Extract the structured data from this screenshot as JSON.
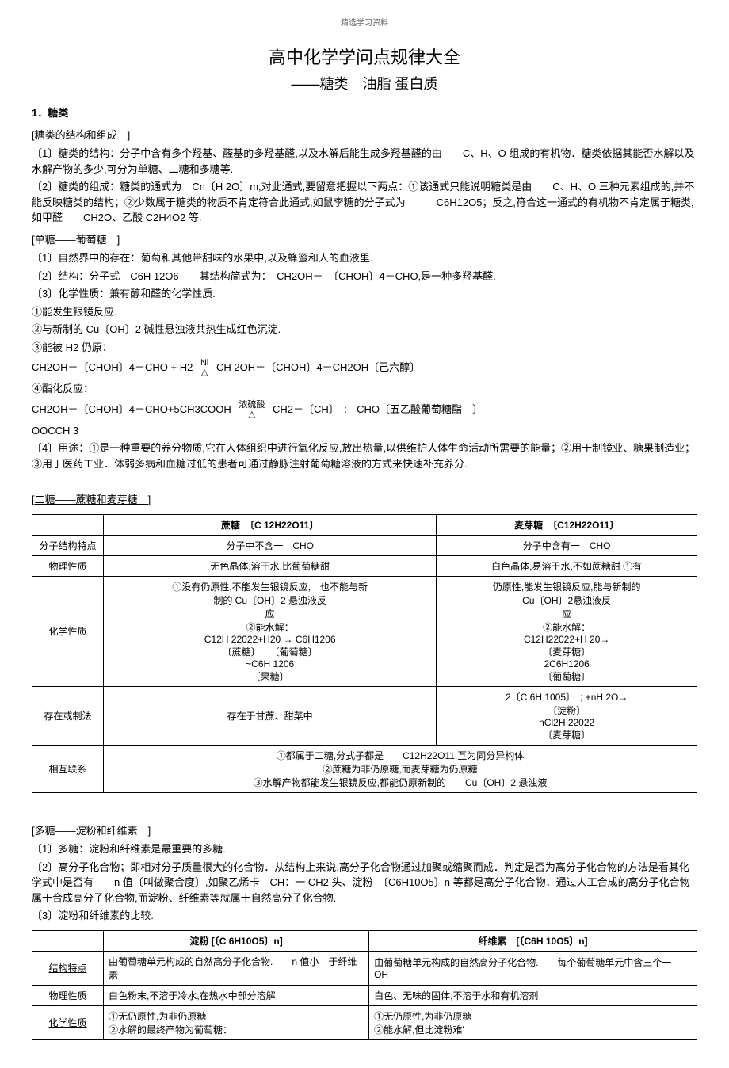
{
  "header_small": "精选学习资料",
  "title": "高中化学学问点规律大全",
  "subtitle": "——糖类　油脂 蛋白质",
  "section1": {
    "heading": "1．糖类",
    "b1_title": "[糖类的结构和组成　]",
    "b1_p1": "〔1〕糖类的结构：分子中含有多个羟基、醛基的多羟基醛,以及水解后能生成多羟基醛的由　　C、H、O 组成的有机物．糖类依据其能否水解以及水解产物的多少,可分为单糖、二糖和多糖等.",
    "b1_p2": "〔2〕糖类的组成：糖类的通式为　Cn〔H 2O〕m,对此通式,要留意把握以下两点：①该通式只能说明糖类是由　　C、H、O 三种元素组成的,并不能反映糖类的结构；②少数属于糖类的物质不肯定符合此通式,如鼠李糖的分子式为　　　C6H12O5；反之,符合这一通式的有机物不肯定属于糖类,如甲醛　　CH2O、乙酸 C2H4O2 等.",
    "b2_title": "[单糖——葡萄糖　]",
    "b2_p1": "〔1〕自然界中的存在：葡萄和其他带甜味的水果中,以及蜂蜜和人的血液里.",
    "b2_p2": "〔2〕结构：分子式　C6H 12O6　　其结构简式为：　CH2OH－　〔CHOH〕4－CHO,是一种多羟基醛.",
    "b2_p3": "〔3〕化学性质：兼有醇和醛的化学性质.",
    "b2_li1": "①能发生银镜反应.",
    "b2_li2": "②与新制的 Cu〔OH〕2 碱性悬浊液共热生成红色沉淀.",
    "b2_li3": "③能被 H2 仍原：",
    "b2_eq1_left": "CH2OH－〔CHOH〕4－CHO + H2",
    "b2_eq1_cond_top": "Ni",
    "b2_eq1_cond_bot": "△",
    "b2_eq1_right": "CH 2OH－〔CHOH〕4－CH2OH〔己六醇〕",
    "b2_li4": "④酯化反应：",
    "b2_eq2_left": "CH2OH－〔CHOH〕4－CHO+5CH3COOH",
    "b2_eq2_cond_top": "浓硫酸",
    "b2_eq2_cond_bot": "△",
    "b2_eq2_right": "CH2－〔CH〕　: --CHO〔五乙酸葡萄糖酯　〕",
    "b2_eq2_extra": "OOCCH 3",
    "b2_p4": "〔4〕用途：①是一种重要的养分物质,它在人体组织中进行氧化反应,放出热量,以供维护人体生命活动所需要的能量；②用于制镜业、糖果制造业；③用于医药工业．体弱多病和血糖过低的患者可通过静脉注射葡萄糖溶液的方式来快速补充养分.",
    "b3_title": "[二糖——蔗糖和麦芽糖　]"
  },
  "table1": {
    "headers": [
      "",
      "蔗糖　〔C 12H22O11〕",
      "麦芽糖　〔C12H22O11〕"
    ],
    "rows": [
      {
        "label": "分子结构特点",
        "c1": "分子中不含一　CHO",
        "c2": "分子中含有一　CHO"
      },
      {
        "label": "物理性质",
        "c1": "无色晶体,溶于水,比葡萄糖甜",
        "c2": "白色晶体,易溶于水,不如蔗糖甜 ①有"
      },
      {
        "label": "化学性质",
        "c1": "①没有仍原性,不能发生银镜反应,　也不能与新\n制的 Cu〔OH〕2 悬浊液反\n应\n②能水解：\nC12H 22022+H20 → C6H1206\n〔蔗糖〕　　〔葡萄糖〕\n~C6H 1206\n〔果糖〕",
        "c2": "仍原性,能发生银镜反应,能与新制的\nCu〔OH〕2悬浊液反\n应\n②能水解：\nC12H22022+H 20→\n〔麦芽糖〕\n2C6H1206\n〔葡萄糖〕"
      },
      {
        "label": "存在或制法",
        "c1": "存在于甘蔗、甜菜中",
        "c2": "2〔C 6H 1005〕　; +nH 2O→\n〔淀粉〕\nnCl2H 22022\n〔麦芽糖〕"
      },
      {
        "label": "相互联系",
        "span": "①都属于二糖,分式子都是　　C12H22O11,互为同分异构体\n②蔗糖为非仍原糖,而麦芽糖为仍原糖\n③水解产物都能发生银镜反应,都能仍原新制的　　Cu〔OH〕2 悬浊液"
      }
    ]
  },
  "section2": {
    "b1_title": "[多糖——淀粉和纤维素　]",
    "b1_p1": "〔1〕多糖：淀粉和纤维素是最重要的多糖.",
    "b1_p2": "〔2〕高分子化合物；即相对分子质量很大的化合物．从结构上来说,高分子化合物通过加聚或缩聚而成．判定是否为高分子化合物的方法是看其化学式中是否有　　n 值〔叫做聚合度〕,如聚乙烯卡　CH：一 CH2 头、淀粉　〔C6H10O5〕n 等都是高分子化合物．通过人工合成的高分子化合物属于合成高分子化合物,而淀粉、纤维素等就属于自然高分子化合物.",
    "b1_p3": "〔3〕淀粉和纤维素的比较."
  },
  "table2": {
    "headers": [
      "",
      "淀粉 [〔C 6H10O5〕n]",
      "纤维素　[〔C6H 10O5〕n]"
    ],
    "rows": [
      {
        "label": "结构特点",
        "c1": "由葡萄糖单元构成的自然高分子化合物.　　n 值小　于纤维素",
        "c2": "由葡萄糖单元构成的自然高分子化合物.　　每个葡萄糖单元中含三个一　OH"
      },
      {
        "label": "物理性质",
        "c1": "白色粉末,不溶于冷水,在热水中部分溶解",
        "c2": "白色、无味的固体,不溶于水和有机溶剂"
      },
      {
        "label": "化学性质",
        "c1": "①无仍原性,为非仍原糖\n②水解的最终产物为葡萄糖：",
        "c2": "①无仍原性,为非仍原糖\n②能水解,但比淀粉难'"
      }
    ]
  }
}
